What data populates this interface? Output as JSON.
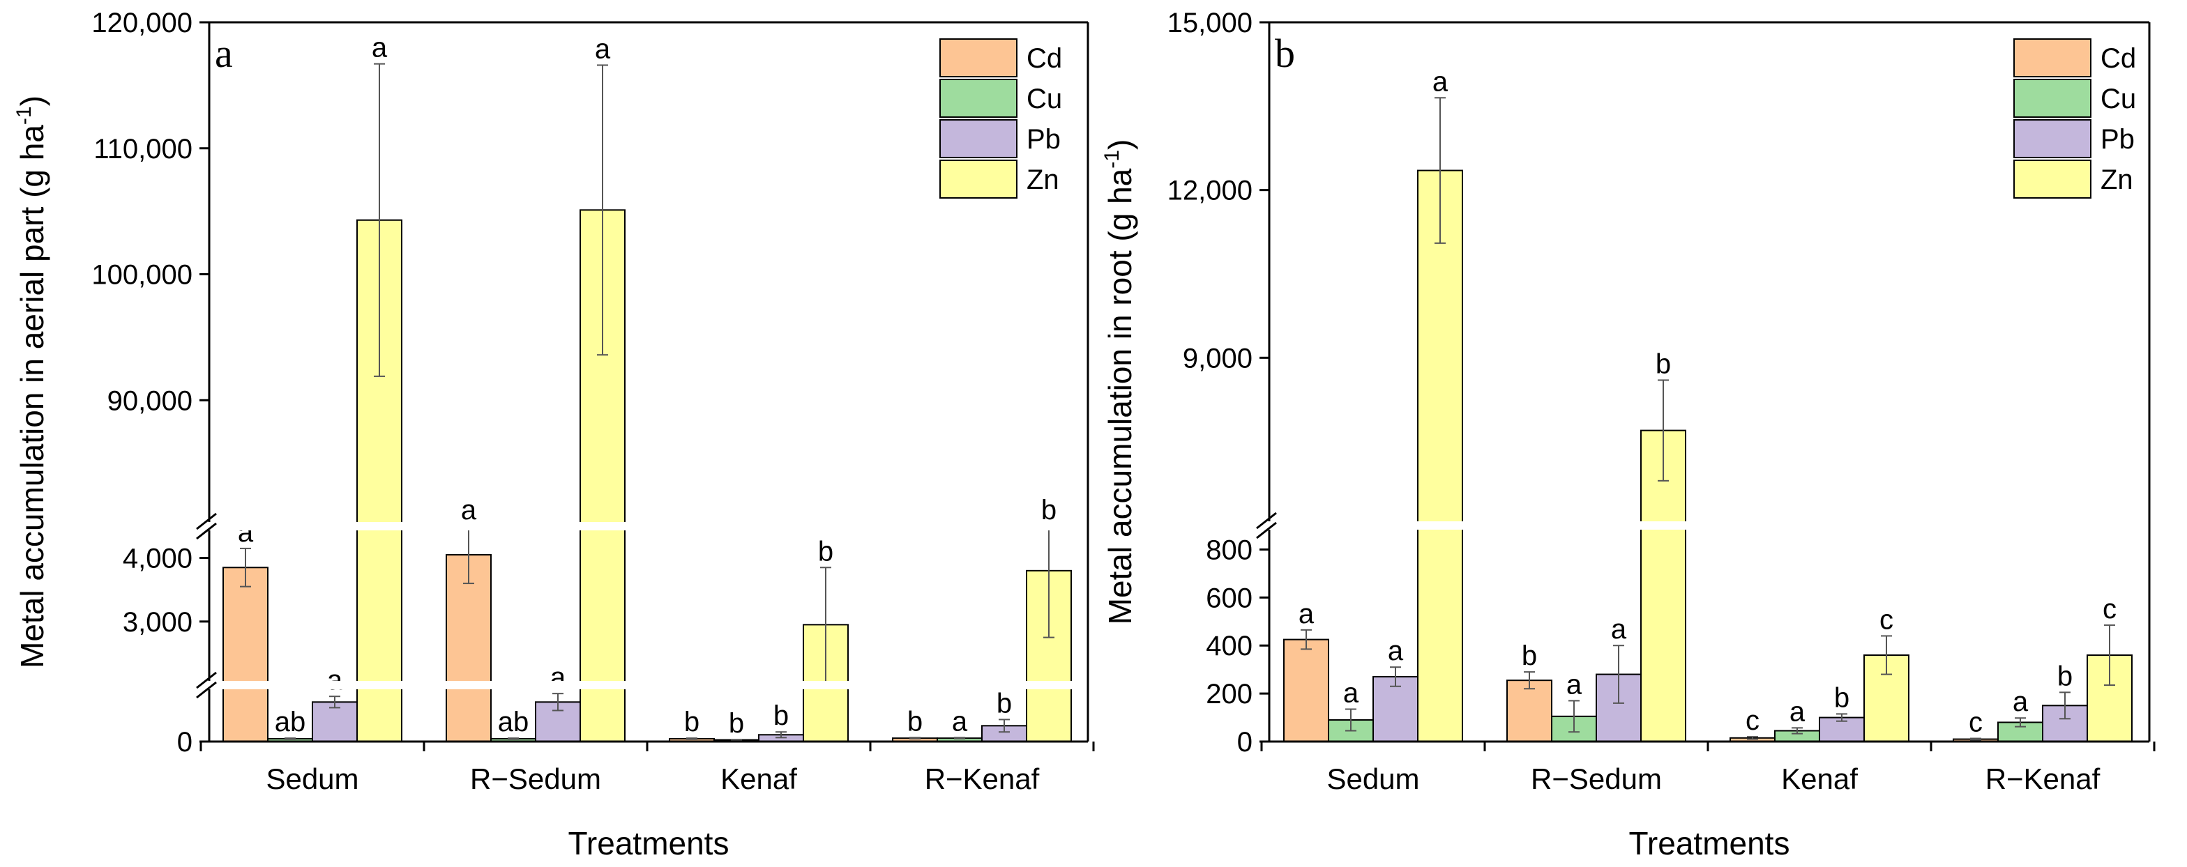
{
  "chart_data": [
    {
      "type": "bar",
      "panel_label": "a",
      "xlabel": "Treatments",
      "ylabel": "Metal accumulation in aerial part (g ha",
      "ylabel_sup": "-1",
      "ylabel_close": ")",
      "categories": [
        "Sedum",
        "R−Sedum",
        "Kenaf",
        "R−Kenaf"
      ],
      "y_breaks": "two axis breaks; lower segments 0-1000, 2000-4500, upper segment 80000-120000",
      "y_tick_labels": [
        {
          "value": 0,
          "label": "0"
        },
        {
          "value": 3000,
          "label": "3,000"
        },
        {
          "value": 4000,
          "label": "4,000"
        },
        {
          "value": 90000,
          "label": "90,000"
        },
        {
          "value": 100000,
          "label": "100,000"
        },
        {
          "value": 110000,
          "label": "110,000"
        },
        {
          "value": 120000,
          "label": "120,000"
        }
      ],
      "legend": "top-right",
      "series": [
        {
          "name": "Cd",
          "color": "#FDC594",
          "values": [
            3850,
            4050,
            50,
            60
          ],
          "errors": [
            300,
            450,
            10,
            10
          ],
          "letters": [
            "a",
            "a",
            "b",
            "b"
          ]
        },
        {
          "name": "Cu",
          "color": "#9EDC9E",
          "values": [
            50,
            50,
            30,
            60
          ],
          "errors": [
            10,
            10,
            5,
            10
          ],
          "letters": [
            "ab",
            "ab",
            "b",
            "a"
          ]
        },
        {
          "name": "Pb",
          "color": "#C4B7DC",
          "values": [
            700,
            700,
            120,
            280
          ],
          "errors": [
            100,
            150,
            50,
            110
          ],
          "letters": [
            "a",
            "a",
            "b",
            "b"
          ]
        },
        {
          "name": "Zn",
          "color": "#FFFF9E",
          "values": [
            104300,
            105100,
            2950,
            3800
          ],
          "errors": [
            12400,
            11500,
            900,
            1050
          ],
          "letters": [
            "a",
            "a",
            "b",
            "b"
          ]
        }
      ]
    },
    {
      "type": "bar",
      "panel_label": "b",
      "xlabel": "Treatments",
      "ylabel": "Metal accumulation in root (g ha",
      "ylabel_sup": "-1",
      "ylabel_close": ")",
      "categories": [
        "Sedum",
        "R−Sedum",
        "Kenaf",
        "R−Kenaf"
      ],
      "y_breaks": "one axis break; lower segment 0-900, upper segment 6000-15000",
      "y_tick_labels": [
        {
          "value": 0,
          "label": "0"
        },
        {
          "value": 200,
          "label": "200"
        },
        {
          "value": 400,
          "label": "400"
        },
        {
          "value": 600,
          "label": "600"
        },
        {
          "value": 800,
          "label": "800"
        },
        {
          "value": 9000,
          "label": "9,000"
        },
        {
          "value": 12000,
          "label": "12,000"
        },
        {
          "value": 15000,
          "label": "15,000"
        }
      ],
      "legend": "top-right",
      "series": [
        {
          "name": "Cd",
          "color": "#FDC594",
          "values": [
            425,
            255,
            15,
            10
          ],
          "errors": [
            40,
            35,
            5,
            3
          ],
          "letters": [
            "a",
            "b",
            "c",
            "c"
          ]
        },
        {
          "name": "Cu",
          "color": "#9EDC9E",
          "values": [
            90,
            105,
            45,
            80
          ],
          "errors": [
            45,
            65,
            12,
            18
          ],
          "letters": [
            "a",
            "a",
            "a",
            "a"
          ]
        },
        {
          "name": "Pb",
          "color": "#C4B7DC",
          "values": [
            270,
            280,
            100,
            150
          ],
          "errors": [
            40,
            120,
            15,
            55
          ],
          "letters": [
            "a",
            "a",
            "b",
            "b"
          ]
        },
        {
          "name": "Zn",
          "color": "#FFFF9E",
          "values": [
            12350,
            7700,
            360,
            360
          ],
          "errors": [
            1300,
            900,
            80,
            125
          ],
          "letters": [
            "a",
            "b",
            "c",
            "c"
          ]
        }
      ]
    }
  ]
}
